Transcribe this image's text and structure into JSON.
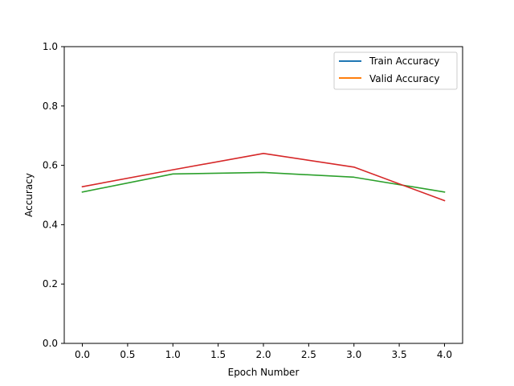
{
  "chart_data": {
    "type": "line",
    "title": "",
    "xlabel": "Epoch Number",
    "ylabel": "Accuracy",
    "xlim": [
      -0.2,
      4.2
    ],
    "ylim": [
      0.0,
      1.0
    ],
    "x_ticks": [
      0.0,
      0.5,
      1.0,
      1.5,
      2.0,
      2.5,
      3.0,
      3.5,
      4.0
    ],
    "x_tick_labels": [
      "0.0",
      "0.5",
      "1.0",
      "1.5",
      "2.0",
      "2.5",
      "3.0",
      "3.5",
      "4.0"
    ],
    "y_ticks": [
      0.0,
      0.2,
      0.4,
      0.6,
      0.8,
      1.0
    ],
    "y_tick_labels": [
      "0.0",
      "0.2",
      "0.4",
      "0.6",
      "0.8",
      "1.0"
    ],
    "grid": false,
    "legend": {
      "placement": "top-right",
      "entries": [
        {
          "label": "Train Accuracy",
          "color": "#1f77b4"
        },
        {
          "label": "Valid Accuracy",
          "color": "#ff7f0e"
        }
      ]
    },
    "series": [
      {
        "color": "#2ca02c",
        "x": [
          0,
          1,
          2,
          3,
          4
        ],
        "y": [
          0.51,
          0.571,
          0.576,
          0.56,
          0.51
        ]
      },
      {
        "color": "#d62728",
        "x": [
          0,
          1,
          2,
          3,
          4
        ],
        "y": [
          0.528,
          0.585,
          0.64,
          0.594,
          0.481
        ]
      }
    ]
  }
}
